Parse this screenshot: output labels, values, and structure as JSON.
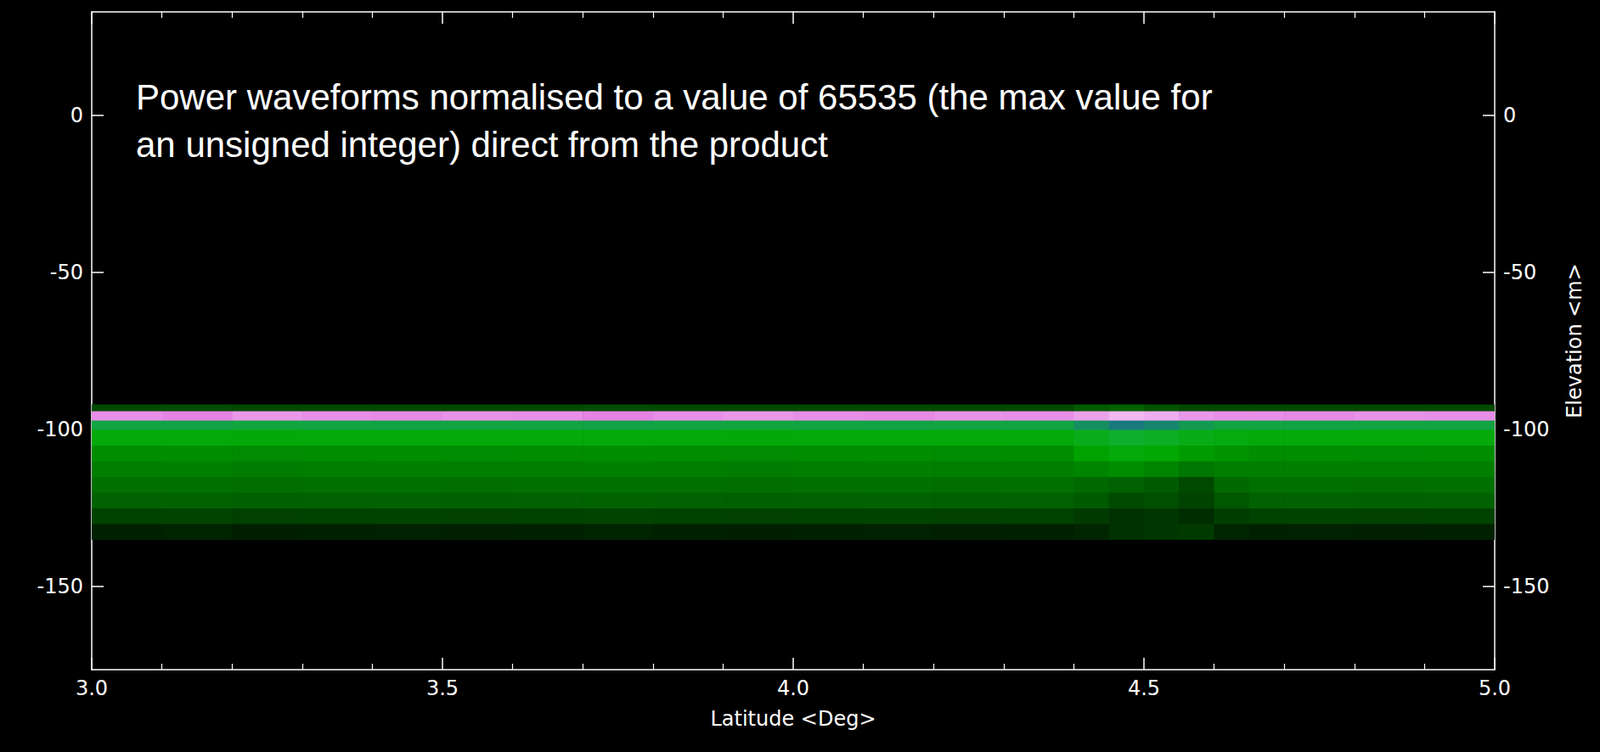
{
  "chart_data": {
    "type": "heatmap",
    "annotation": "Power waveforms normalised to a value of 65535 (the max value for an unsigned integer) direct from the product",
    "x_label": "Latitude <Deg>",
    "y2_label": "Elevation <m>",
    "xlim": [
      3,
      5
    ],
    "xticks": [
      {
        "value": 3,
        "label": "3.0"
      },
      {
        "value": 3.5,
        "label": "3.5"
      },
      {
        "value": 4,
        "label": "4.0"
      },
      {
        "value": 4.5,
        "label": "4.5"
      },
      {
        "value": 5,
        "label": "5.0"
      }
    ],
    "ylim": [
      -176.5,
      33
    ],
    "yticks": [
      -150,
      -100,
      -50,
      0
    ],
    "y2lim": [
      -176.5,
      33
    ],
    "y2ticks": [
      -150,
      -100,
      -50,
      0
    ],
    "grid": false,
    "color_range": [
      0,
      65535
    ],
    "x_edges": [
      3.0,
      3.1,
      3.2,
      3.3,
      3.4,
      3.5,
      3.6,
      3.7,
      3.8,
      3.9,
      4.0,
      4.1,
      4.2,
      4.3,
      4.4,
      4.45,
      4.5,
      4.55,
      4.6,
      4.65,
      4.7,
      4.8,
      4.9,
      5.0
    ],
    "y_edges": [
      -135,
      -130,
      -125,
      -120,
      -115,
      -110,
      -105,
      -100,
      -97,
      -94,
      -92
    ],
    "cells": [
      [
        4000,
        4200,
        3800,
        4000,
        4100,
        3900,
        4000,
        4200,
        4000,
        3800,
        4000,
        4100,
        3900,
        4000,
        4500,
        6000,
        6500,
        7000,
        4500,
        4000,
        4100,
        3900,
        4000
      ],
      [
        8000,
        8200,
        7800,
        8000,
        8100,
        7900,
        8000,
        8200,
        8000,
        7800,
        8000,
        8100,
        7900,
        8000,
        7000,
        6000,
        6500,
        5500,
        7500,
        8000,
        8100,
        7900,
        8000
      ],
      [
        12000,
        12200,
        11800,
        12000,
        12100,
        11900,
        12000,
        12200,
        12000,
        11800,
        12000,
        12100,
        11900,
        12000,
        11000,
        9000,
        9500,
        8000,
        10500,
        12000,
        12100,
        11900,
        12000
      ],
      [
        14000,
        14200,
        13800,
        14000,
        14100,
        13900,
        14000,
        14200,
        14000,
        13800,
        14000,
        14100,
        13900,
        14000,
        13000,
        12000,
        11000,
        9000,
        13000,
        14000,
        14100,
        13900,
        14000
      ],
      [
        16000,
        16200,
        15800,
        16000,
        16100,
        15900,
        16000,
        16200,
        16000,
        15800,
        16000,
        16100,
        15900,
        16000,
        17000,
        18000,
        17000,
        15000,
        16000,
        16000,
        16100,
        15900,
        16000
      ],
      [
        18000,
        18200,
        17800,
        18000,
        18100,
        17900,
        18000,
        18200,
        18000,
        17800,
        18000,
        18100,
        17900,
        18000,
        21000,
        24000,
        22000,
        20000,
        19000,
        18000,
        18100,
        17900,
        18000
      ],
      [
        24000,
        24200,
        23800,
        24000,
        24100,
        23900,
        24000,
        24200,
        24000,
        23800,
        24000,
        24100,
        23900,
        24000,
        28000,
        32000,
        30000,
        27000,
        25000,
        24000,
        24100,
        23900,
        24000
      ],
      [
        34000,
        34200,
        33800,
        34000,
        34100,
        33900,
        34000,
        34200,
        34000,
        33800,
        34000,
        34100,
        33900,
        34000,
        36000,
        38000,
        37000,
        35000,
        34000,
        34000,
        34100,
        33900,
        34000
      ],
      [
        60000,
        59500,
        60500,
        60000,
        59800,
        60200,
        60000,
        59500,
        60000,
        60500,
        60000,
        59800,
        60200,
        60000,
        61000,
        62000,
        61500,
        60500,
        60000,
        60000,
        59800,
        60200,
        60000
      ],
      [
        9000,
        9200,
        8800,
        9000,
        9100,
        8900,
        9000,
        9200,
        9000,
        8800,
        9000,
        9100,
        8900,
        9000,
        11000,
        12000,
        10000,
        9000,
        9000,
        9000,
        9100,
        8900,
        9000
      ]
    ]
  }
}
